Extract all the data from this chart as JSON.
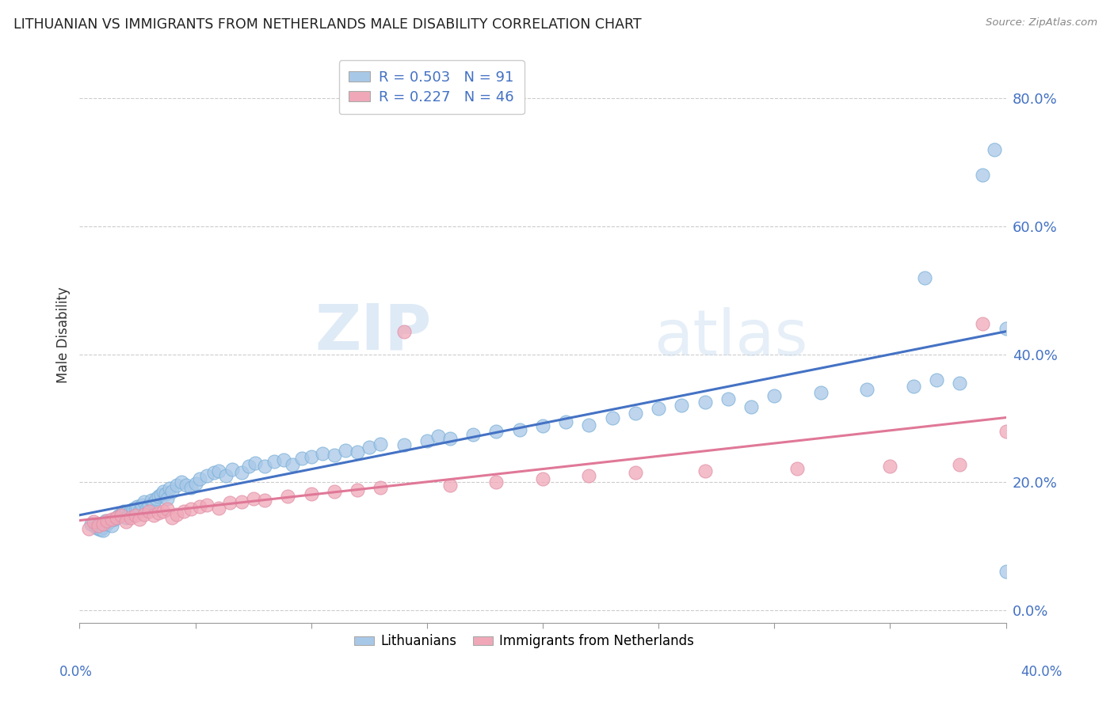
{
  "title": "LITHUANIAN VS IMMIGRANTS FROM NETHERLANDS MALE DISABILITY CORRELATION CHART",
  "source": "Source: ZipAtlas.com",
  "ylabel": "Male Disability",
  "right_yticks": [
    "0.0%",
    "20.0%",
    "40.0%",
    "60.0%",
    "80.0%"
  ],
  "right_ytick_vals": [
    0.0,
    0.2,
    0.4,
    0.6,
    0.8
  ],
  "xlim": [
    0.0,
    0.4
  ],
  "ylim": [
    -0.02,
    0.88
  ],
  "legend_blue_R": "0.503",
  "legend_blue_N": "91",
  "legend_pink_R": "0.227",
  "legend_pink_N": "46",
  "blue_color": "#a8c8e8",
  "pink_color": "#f0a8b8",
  "blue_line_color": "#4472c4",
  "pink_line_color": "#e07898",
  "watermark_zip": "ZIP",
  "watermark_atlas": "atlas",
  "blue_scatter_x": [
    0.005,
    0.007,
    0.008,
    0.009,
    0.01,
    0.01,
    0.011,
    0.012,
    0.013,
    0.014,
    0.015,
    0.016,
    0.017,
    0.018,
    0.019,
    0.02,
    0.02,
    0.021,
    0.022,
    0.023,
    0.024,
    0.025,
    0.026,
    0.027,
    0.028,
    0.029,
    0.03,
    0.031,
    0.032,
    0.033,
    0.034,
    0.035,
    0.036,
    0.037,
    0.038,
    0.039,
    0.04,
    0.042,
    0.044,
    0.046,
    0.048,
    0.05,
    0.052,
    0.055,
    0.058,
    0.06,
    0.063,
    0.066,
    0.07,
    0.073,
    0.076,
    0.08,
    0.084,
    0.088,
    0.092,
    0.096,
    0.1,
    0.105,
    0.11,
    0.115,
    0.12,
    0.125,
    0.13,
    0.14,
    0.15,
    0.155,
    0.16,
    0.17,
    0.18,
    0.19,
    0.2,
    0.21,
    0.22,
    0.23,
    0.24,
    0.25,
    0.26,
    0.27,
    0.28,
    0.29,
    0.3,
    0.32,
    0.34,
    0.36,
    0.365,
    0.37,
    0.38,
    0.39,
    0.395,
    0.4,
    0.4
  ],
  "blue_scatter_y": [
    0.135,
    0.13,
    0.128,
    0.126,
    0.13,
    0.125,
    0.14,
    0.135,
    0.138,
    0.132,
    0.142,
    0.145,
    0.148,
    0.15,
    0.155,
    0.145,
    0.152,
    0.148,
    0.156,
    0.158,
    0.16,
    0.162,
    0.155,
    0.165,
    0.17,
    0.158,
    0.165,
    0.172,
    0.168,
    0.175,
    0.178,
    0.18,
    0.185,
    0.182,
    0.175,
    0.19,
    0.185,
    0.195,
    0.2,
    0.195,
    0.192,
    0.198,
    0.205,
    0.21,
    0.215,
    0.218,
    0.21,
    0.22,
    0.215,
    0.225,
    0.23,
    0.225,
    0.232,
    0.235,
    0.228,
    0.238,
    0.24,
    0.245,
    0.242,
    0.25,
    0.248,
    0.255,
    0.26,
    0.258,
    0.265,
    0.272,
    0.268,
    0.275,
    0.28,
    0.282,
    0.288,
    0.295,
    0.29,
    0.3,
    0.308,
    0.315,
    0.32,
    0.325,
    0.33,
    0.318,
    0.335,
    0.34,
    0.345,
    0.35,
    0.52,
    0.36,
    0.355,
    0.68,
    0.72,
    0.44,
    0.06
  ],
  "pink_scatter_x": [
    0.004,
    0.006,
    0.008,
    0.01,
    0.012,
    0.014,
    0.016,
    0.018,
    0.02,
    0.022,
    0.024,
    0.026,
    0.028,
    0.03,
    0.032,
    0.034,
    0.036,
    0.038,
    0.04,
    0.042,
    0.045,
    0.048,
    0.052,
    0.055,
    0.06,
    0.065,
    0.07,
    0.075,
    0.08,
    0.09,
    0.1,
    0.11,
    0.12,
    0.13,
    0.14,
    0.16,
    0.18,
    0.2,
    0.22,
    0.24,
    0.27,
    0.31,
    0.35,
    0.38,
    0.39,
    0.4
  ],
  "pink_scatter_y": [
    0.128,
    0.138,
    0.132,
    0.135,
    0.14,
    0.142,
    0.145,
    0.148,
    0.138,
    0.145,
    0.148,
    0.142,
    0.15,
    0.155,
    0.148,
    0.152,
    0.155,
    0.158,
    0.145,
    0.15,
    0.155,
    0.158,
    0.162,
    0.165,
    0.16,
    0.168,
    0.17,
    0.175,
    0.172,
    0.178,
    0.182,
    0.185,
    0.188,
    0.192,
    0.435,
    0.195,
    0.2,
    0.205,
    0.21,
    0.215,
    0.218,
    0.222,
    0.225,
    0.228,
    0.448,
    0.28
  ]
}
